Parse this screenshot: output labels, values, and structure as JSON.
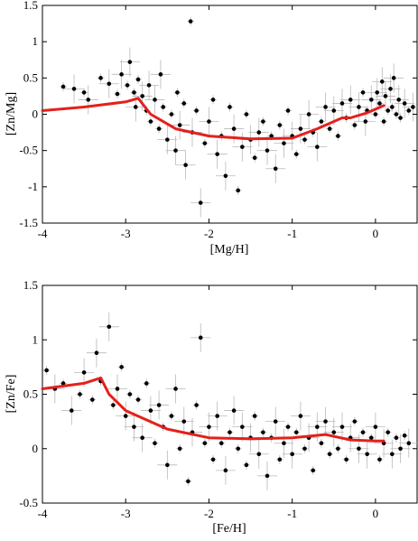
{
  "chart_data": [
    {
      "type": "scatter",
      "xlabel": "[Mg/H]",
      "ylabel": "[Zn/Mg]",
      "xlim": [
        -4,
        0.5
      ],
      "ylim": [
        -1.5,
        1.5
      ],
      "xticks": [
        -4,
        -3,
        -2,
        -1,
        0
      ],
      "yticks": [
        -1.5,
        -1,
        -0.5,
        0,
        0.5,
        1,
        1.5
      ],
      "xtick_labels": [
        "-4",
        "-3",
        "-2",
        "-1",
        "0"
      ],
      "ytick_labels": [
        "-1.5",
        "-1",
        "-0.5",
        "0",
        "0.5",
        "1",
        "1.5"
      ],
      "grid": false,
      "points_color": "#000000",
      "errorbar_color": "#b8b8b8",
      "points": [
        [
          -3.75,
          0.38
        ],
        [
          -3.62,
          0.35
        ],
        [
          -3.5,
          0.3
        ],
        [
          -3.45,
          0.2
        ],
        [
          -3.3,
          0.5
        ],
        [
          -3.2,
          0.42
        ],
        [
          -3.1,
          0.28
        ],
        [
          -3.05,
          0.55
        ],
        [
          -2.98,
          0.4
        ],
        [
          -2.95,
          0.72
        ],
        [
          -2.9,
          0.3
        ],
        [
          -2.88,
          0.1
        ],
        [
          -2.85,
          0.48
        ],
        [
          -2.8,
          0.25
        ],
        [
          -2.75,
          0.05
        ],
        [
          -2.72,
          0.4
        ],
        [
          -2.7,
          -0.1
        ],
        [
          -2.65,
          0.2
        ],
        [
          -2.6,
          -0.2
        ],
        [
          -2.58,
          0.55
        ],
        [
          -2.55,
          0.1
        ],
        [
          -2.5,
          -0.35
        ],
        [
          -2.45,
          0.0
        ],
        [
          -2.4,
          -0.5
        ],
        [
          -2.38,
          0.3
        ],
        [
          -2.35,
          -0.15
        ],
        [
          -2.3,
          0.15
        ],
        [
          -2.28,
          -0.7
        ],
        [
          -2.22,
          1.28
        ],
        [
          -2.2,
          -0.25
        ],
        [
          -2.15,
          0.05
        ],
        [
          -2.1,
          -1.22
        ],
        [
          -2.05,
          -0.4
        ],
        [
          -2.0,
          -0.1
        ],
        [
          -1.95,
          0.2
        ],
        [
          -1.9,
          -0.55
        ],
        [
          -1.85,
          -0.3
        ],
        [
          -1.8,
          -0.85
        ],
        [
          -1.75,
          0.1
        ],
        [
          -1.7,
          -0.2
        ],
        [
          -1.65,
          -1.05
        ],
        [
          -1.6,
          -0.45
        ],
        [
          -1.55,
          0.0
        ],
        [
          -1.5,
          -0.35
        ],
        [
          -1.45,
          -0.6
        ],
        [
          -1.4,
          -0.25
        ],
        [
          -1.35,
          -0.1
        ],
        [
          -1.3,
          -0.5
        ],
        [
          -1.25,
          -0.3
        ],
        [
          -1.2,
          -0.75
        ],
        [
          -1.15,
          -0.15
        ],
        [
          -1.1,
          -0.4
        ],
        [
          -1.05,
          0.05
        ],
        [
          -1.0,
          -0.3
        ],
        [
          -0.95,
          -0.55
        ],
        [
          -0.9,
          -0.2
        ],
        [
          -0.85,
          -0.35
        ],
        [
          -0.8,
          0.0
        ],
        [
          -0.75,
          -0.25
        ],
        [
          -0.7,
          -0.45
        ],
        [
          -0.65,
          -0.1
        ],
        [
          -0.6,
          0.1
        ],
        [
          -0.55,
          -0.2
        ],
        [
          -0.5,
          0.05
        ],
        [
          -0.45,
          -0.3
        ],
        [
          -0.4,
          0.15
        ],
        [
          -0.35,
          -0.05
        ],
        [
          -0.3,
          0.2
        ],
        [
          -0.25,
          -0.15
        ],
        [
          -0.2,
          0.1
        ],
        [
          -0.15,
          0.3
        ],
        [
          -0.12,
          -0.1
        ],
        [
          -0.1,
          0.05
        ],
        [
          -0.05,
          0.2
        ],
        [
          0.0,
          0.0
        ],
        [
          0.02,
          0.3
        ],
        [
          0.05,
          0.15
        ],
        [
          0.08,
          0.45
        ],
        [
          0.1,
          -0.1
        ],
        [
          0.12,
          0.25
        ],
        [
          0.15,
          0.05
        ],
        [
          0.18,
          0.35
        ],
        [
          0.2,
          0.1
        ],
        [
          0.22,
          0.5
        ],
        [
          0.25,
          0.0
        ],
        [
          0.28,
          0.2
        ],
        [
          0.3,
          -0.05
        ],
        [
          0.35,
          0.15
        ],
        [
          0.4,
          0.05
        ],
        [
          0.45,
          0.1
        ]
      ],
      "model_color": "#e3211c",
      "model_line": {
        "x": [
          -4.0,
          -3.5,
          -3.0,
          -2.85,
          -2.7,
          -2.4,
          -2.0,
          -1.5,
          -1.0,
          -0.7,
          -0.4,
          -0.3,
          -0.1,
          0.1
        ],
        "y": [
          0.05,
          0.1,
          0.17,
          0.22,
          0.0,
          -0.2,
          -0.3,
          -0.34,
          -0.33,
          -0.2,
          -0.05,
          -0.05,
          0.02,
          0.12
        ]
      }
    },
    {
      "type": "scatter",
      "xlabel": "[Fe/H]",
      "ylabel": "[Zn/Fe]",
      "xlim": [
        -4,
        0.5
      ],
      "ylim": [
        -0.5,
        1.5
      ],
      "xticks": [
        -4,
        -3,
        -2,
        -1,
        0
      ],
      "yticks": [
        -0.5,
        0,
        0.5,
        1,
        1.5
      ],
      "xtick_labels": [
        "-4",
        "-3",
        "-2",
        "-1",
        "0"
      ],
      "ytick_labels": [
        "-0.5",
        "0",
        "0.5",
        "1",
        "1.5"
      ],
      "grid": false,
      "points_color": "#000000",
      "errorbar_color": "#b8b8b8",
      "points": [
        [
          -3.95,
          0.72
        ],
        [
          -3.85,
          0.55
        ],
        [
          -3.75,
          0.6
        ],
        [
          -3.65,
          0.35
        ],
        [
          -3.55,
          0.5
        ],
        [
          -3.5,
          0.7
        ],
        [
          -3.4,
          0.45
        ],
        [
          -3.35,
          0.88
        ],
        [
          -3.3,
          0.62
        ],
        [
          -3.2,
          1.12
        ],
        [
          -3.15,
          0.4
        ],
        [
          -3.1,
          0.55
        ],
        [
          -3.05,
          0.75
        ],
        [
          -3.0,
          0.3
        ],
        [
          -2.95,
          0.5
        ],
        [
          -2.9,
          0.2
        ],
        [
          -2.85,
          0.45
        ],
        [
          -2.8,
          0.1
        ],
        [
          -2.75,
          0.6
        ],
        [
          -2.7,
          0.35
        ],
        [
          -2.65,
          0.05
        ],
        [
          -2.6,
          0.4
        ],
        [
          -2.55,
          0.2
        ],
        [
          -2.5,
          -0.15
        ],
        [
          -2.45,
          0.3
        ],
        [
          -2.4,
          0.55
        ],
        [
          -2.35,
          0.0
        ],
        [
          -2.3,
          0.25
        ],
        [
          -2.25,
          -0.3
        ],
        [
          -2.2,
          0.15
        ],
        [
          -2.15,
          0.4
        ],
        [
          -2.1,
          1.02
        ],
        [
          -2.05,
          0.05
        ],
        [
          -2.0,
          0.2
        ],
        [
          -1.95,
          -0.1
        ],
        [
          -1.9,
          0.3
        ],
        [
          -1.85,
          0.05
        ],
        [
          -1.8,
          -0.2
        ],
        [
          -1.75,
          0.15
        ],
        [
          -1.7,
          0.35
        ],
        [
          -1.65,
          0.0
        ],
        [
          -1.6,
          0.2
        ],
        [
          -1.55,
          -0.15
        ],
        [
          -1.5,
          0.1
        ],
        [
          -1.45,
          0.3
        ],
        [
          -1.4,
          -0.05
        ],
        [
          -1.35,
          0.15
        ],
        [
          -1.3,
          -0.25
        ],
        [
          -1.25,
          0.1
        ],
        [
          -1.2,
          0.25
        ],
        [
          -1.15,
          -0.1
        ],
        [
          -1.1,
          0.05
        ],
        [
          -1.05,
          0.2
        ],
        [
          -1.0,
          -0.05
        ],
        [
          -0.95,
          0.15
        ],
        [
          -0.9,
          0.3
        ],
        [
          -0.85,
          0.0
        ],
        [
          -0.8,
          0.1
        ],
        [
          -0.75,
          -0.2
        ],
        [
          -0.7,
          0.2
        ],
        [
          -0.65,
          0.05
        ],
        [
          -0.6,
          0.25
        ],
        [
          -0.55,
          -0.05
        ],
        [
          -0.5,
          0.15
        ],
        [
          -0.45,
          0.0
        ],
        [
          -0.4,
          0.2
        ],
        [
          -0.35,
          -0.1
        ],
        [
          -0.3,
          0.1
        ],
        [
          -0.25,
          0.25
        ],
        [
          -0.2,
          0.0
        ],
        [
          -0.15,
          0.15
        ],
        [
          -0.1,
          -0.05
        ],
        [
          -0.05,
          0.1
        ],
        [
          0.0,
          0.2
        ],
        [
          0.05,
          -0.1
        ],
        [
          0.1,
          0.05
        ],
        [
          0.15,
          0.15
        ],
        [
          0.2,
          -0.05
        ],
        [
          0.25,
          0.1
        ],
        [
          0.3,
          0.0
        ],
        [
          0.35,
          0.12
        ],
        [
          0.4,
          0.05
        ]
      ],
      "model_color": "#e3211c",
      "model_line": {
        "x": [
          -4.0,
          -3.5,
          -3.3,
          -3.2,
          -3.0,
          -2.5,
          -2.0,
          -1.5,
          -1.0,
          -0.6,
          -0.3,
          0.0,
          0.1
        ],
        "y": [
          0.55,
          0.6,
          0.65,
          0.5,
          0.35,
          0.18,
          0.1,
          0.09,
          0.1,
          0.13,
          0.08,
          0.07,
          0.07
        ]
      }
    }
  ]
}
